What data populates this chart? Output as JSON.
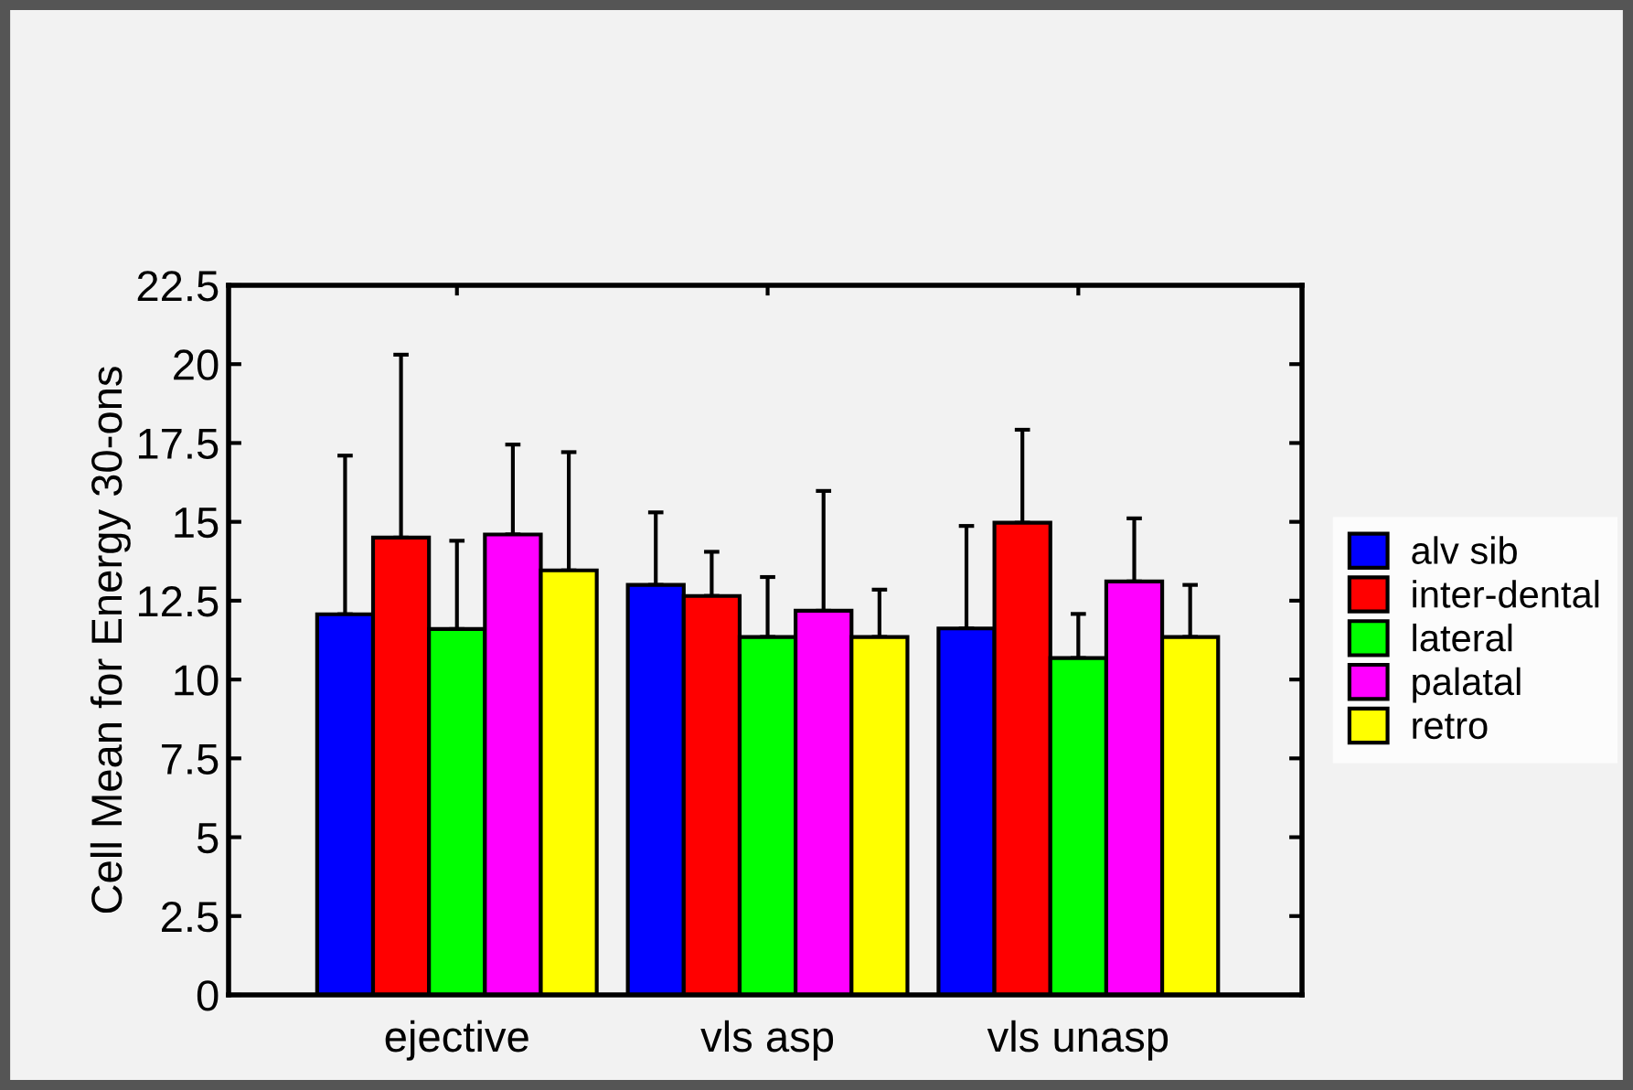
{
  "chart_data": {
    "type": "bar",
    "ylabel": "Cell Mean for Energy 30-ons",
    "categories": [
      "ejective",
      "vls asp",
      "vls unasp"
    ],
    "series": [
      {
        "name": "alv sib",
        "color": "#0000ff",
        "values": [
          12.07,
          13.0,
          11.62
        ],
        "errors": [
          [
            12.07,
            17.1
          ],
          [
            13.0,
            15.3
          ],
          [
            11.62,
            14.87
          ]
        ]
      },
      {
        "name": "inter-dental",
        "color": "#ff0000",
        "values": [
          14.5,
          12.65,
          14.97
        ],
        "errors": [
          [
            14.5,
            20.3
          ],
          [
            12.65,
            14.05
          ],
          [
            14.97,
            17.92
          ]
        ]
      },
      {
        "name": "lateral",
        "color": "#00ff00",
        "values": [
          11.6,
          11.35,
          10.68
        ],
        "errors": [
          [
            11.6,
            14.4
          ],
          [
            11.35,
            13.25
          ],
          [
            10.68,
            12.08
          ]
        ]
      },
      {
        "name": "palatal",
        "color": "#ff00ff",
        "values": [
          14.6,
          12.18,
          13.11
        ],
        "errors": [
          [
            14.6,
            17.45
          ],
          [
            12.18,
            15.98
          ],
          [
            13.11,
            15.11
          ]
        ]
      },
      {
        "name": "retro",
        "color": "#ffff00",
        "values": [
          13.46,
          11.35,
          11.35
        ],
        "errors": [
          [
            13.46,
            17.21
          ],
          [
            11.35,
            12.85
          ],
          [
            11.35,
            13.0
          ]
        ]
      }
    ],
    "ylim": [
      0,
      22.5
    ],
    "yticks": [
      0,
      2.5,
      5,
      7.5,
      10,
      12.5,
      15,
      17.5,
      20,
      22.5
    ],
    "grid": false,
    "legend": "right"
  }
}
